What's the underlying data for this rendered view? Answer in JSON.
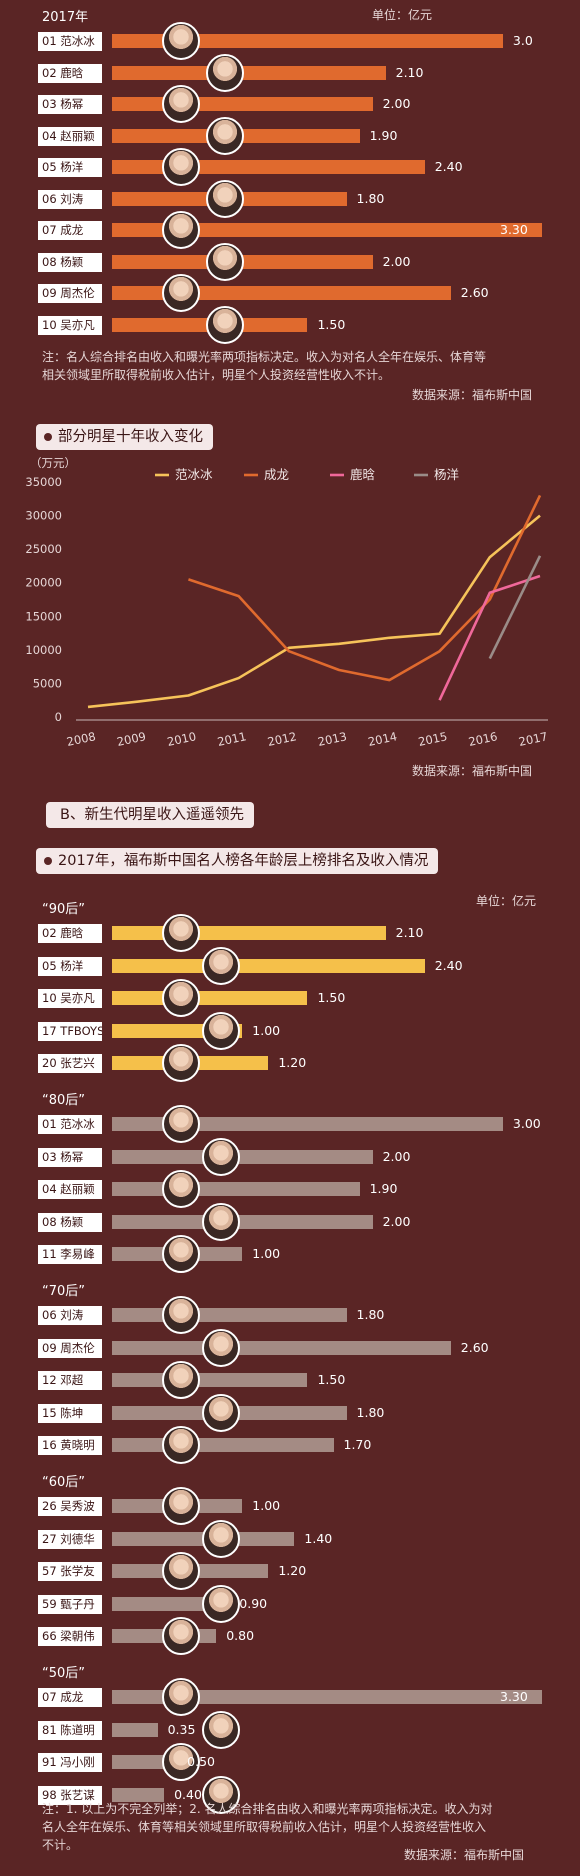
{
  "top": {
    "title": "2017年",
    "unit": "单位：亿元",
    "note_line1": "注：名人综合排名由收入和曝光率两项指标决定。收入为对名人全年在娱乐、体育等",
    "note_line2": "相关领域里所取得税前收入估计，明星个人投资经营性收入不计。",
    "source": "数据来源：福布斯中国"
  },
  "line_section": {
    "title": "部分明星十年收入变化",
    "source": "数据来源：福布斯中国"
  },
  "section_b": {
    "title": "B、新生代明星收入遥遥领先"
  },
  "age_section": {
    "title": "2017年，福布斯中国名人榜各年龄层上榜排名及收入情况",
    "unit": "单位：亿元",
    "note_line1": "注：1. 以上为不完全列举；2. 名人综合排名由收入和曝光率两项指标决定。收入为对",
    "note_line2": "名人全年在娱乐、体育等相关领域里所取得税前收入估计，明星个人投资经营性收入",
    "note_line3": "不计。",
    "source": "数据来源：福布斯中国"
  },
  "colors": {
    "background": "#5a2525",
    "bar_orange": "#e06a2e",
    "bar_yellow": "#f5c04a",
    "bar_gray": "#a48b84",
    "fan": "#f6c35a",
    "cheng": "#e06a2e",
    "lu": "#f0689a",
    "yang": "#9a8c88"
  },
  "chart_data": [
    {
      "type": "bar",
      "orientation": "horizontal",
      "title": "2017年",
      "unit": "单位：亿元",
      "categories": [
        "01 范冰冰",
        "02 鹿晗",
        "03 杨幂",
        "04 赵丽颖",
        "05 杨洋",
        "06 刘涛",
        "07 成龙",
        "08 杨颖",
        "09 周杰伦",
        "10 吴亦凡"
      ],
      "value_labels": [
        "3.0",
        "2.10",
        "2.00",
        "1.90",
        "2.40",
        "1.80",
        "3.30",
        "2.00",
        "2.60",
        "1.50"
      ],
      "values": [
        3.0,
        2.1,
        2.0,
        1.9,
        2.4,
        1.8,
        3.3,
        2.0,
        2.6,
        1.5
      ],
      "xlim": [
        0,
        3.3
      ]
    },
    {
      "type": "line",
      "title": "部分明星十年收入变化",
      "ylabel": "（万元）",
      "x": [
        "2008",
        "2009",
        "2010",
        "2011",
        "2012",
        "2013",
        "2014",
        "2015",
        "2016",
        "2017"
      ],
      "y_ticks": [
        "0",
        "5000",
        "10000",
        "15000",
        "20000",
        "25000",
        "30000",
        "35000"
      ],
      "ylim": [
        0,
        35000
      ],
      "legend_position": "top",
      "series": [
        {
          "name": "范冰冰",
          "color": "#f6c35a",
          "values": [
            1500,
            2300,
            3200,
            5800,
            10300,
            10900,
            11800,
            12400,
            23800,
            30000
          ]
        },
        {
          "name": "成龙",
          "color": "#e06a2e",
          "values": [
            null,
            null,
            20500,
            18000,
            9800,
            7000,
            5500,
            9800,
            17500,
            33000
          ]
        },
        {
          "name": "鹿晗",
          "color": "#f0689a",
          "values": [
            null,
            null,
            null,
            null,
            null,
            null,
            null,
            2500,
            18500,
            21000
          ]
        },
        {
          "name": "杨洋",
          "color": "#9a8c88",
          "values": [
            null,
            null,
            null,
            null,
            null,
            null,
            null,
            null,
            8700,
            24000
          ]
        }
      ]
    },
    {
      "type": "bar",
      "orientation": "horizontal",
      "title": "2017年，福布斯中国名人榜各年龄层上榜排名及收入情况",
      "unit": "单位：亿元",
      "xlim": [
        0,
        3.3
      ],
      "groups": [
        {
          "name": "“90后”",
          "color": "#f5c04a",
          "categories": [
            "02 鹿晗",
            "05 杨洋",
            "10 吴亦凡",
            "17 TFBOYS",
            "20 张艺兴"
          ],
          "value_labels": [
            "2.10",
            "2.40",
            "1.50",
            "1.00",
            "1.20"
          ],
          "values": [
            2.1,
            2.4,
            1.5,
            1.0,
            1.2
          ]
        },
        {
          "name": "“80后”",
          "color": "#a48b84",
          "categories": [
            "01 范冰冰",
            "03 杨幂",
            "04 赵丽颖",
            "08 杨颖",
            "11 李易峰"
          ],
          "value_labels": [
            "3.00",
            "2.00",
            "1.90",
            "2.00",
            "1.00"
          ],
          "values": [
            3.0,
            2.0,
            1.9,
            2.0,
            1.0
          ]
        },
        {
          "name": "“70后”",
          "color": "#a48b84",
          "categories": [
            "06 刘涛",
            "09 周杰伦",
            "12 邓超",
            "15 陈坤",
            "16 黄晓明"
          ],
          "value_labels": [
            "1.80",
            "2.60",
            "1.50",
            "1.80",
            "1.70"
          ],
          "values": [
            1.8,
            2.6,
            1.5,
            1.8,
            1.7
          ]
        },
        {
          "name": "“60后”",
          "color": "#a48b84",
          "categories": [
            "26 吴秀波",
            "27 刘德华",
            "57 张学友",
            "59 甄子丹",
            "66 梁朝伟"
          ],
          "value_labels": [
            "1.00",
            "1.40",
            "1.20",
            "0.90",
            "0.80"
          ],
          "values": [
            1.0,
            1.4,
            1.2,
            0.9,
            0.8
          ]
        },
        {
          "name": "“50后”",
          "color": "#a48b84",
          "categories": [
            "07 成龙",
            "81 陈道明",
            "91 冯小刚",
            "98 张艺谋"
          ],
          "value_labels": [
            "3.30",
            "0.35",
            "0.50",
            "0.40"
          ],
          "values": [
            3.3,
            0.35,
            0.5,
            0.4
          ]
        }
      ]
    }
  ]
}
